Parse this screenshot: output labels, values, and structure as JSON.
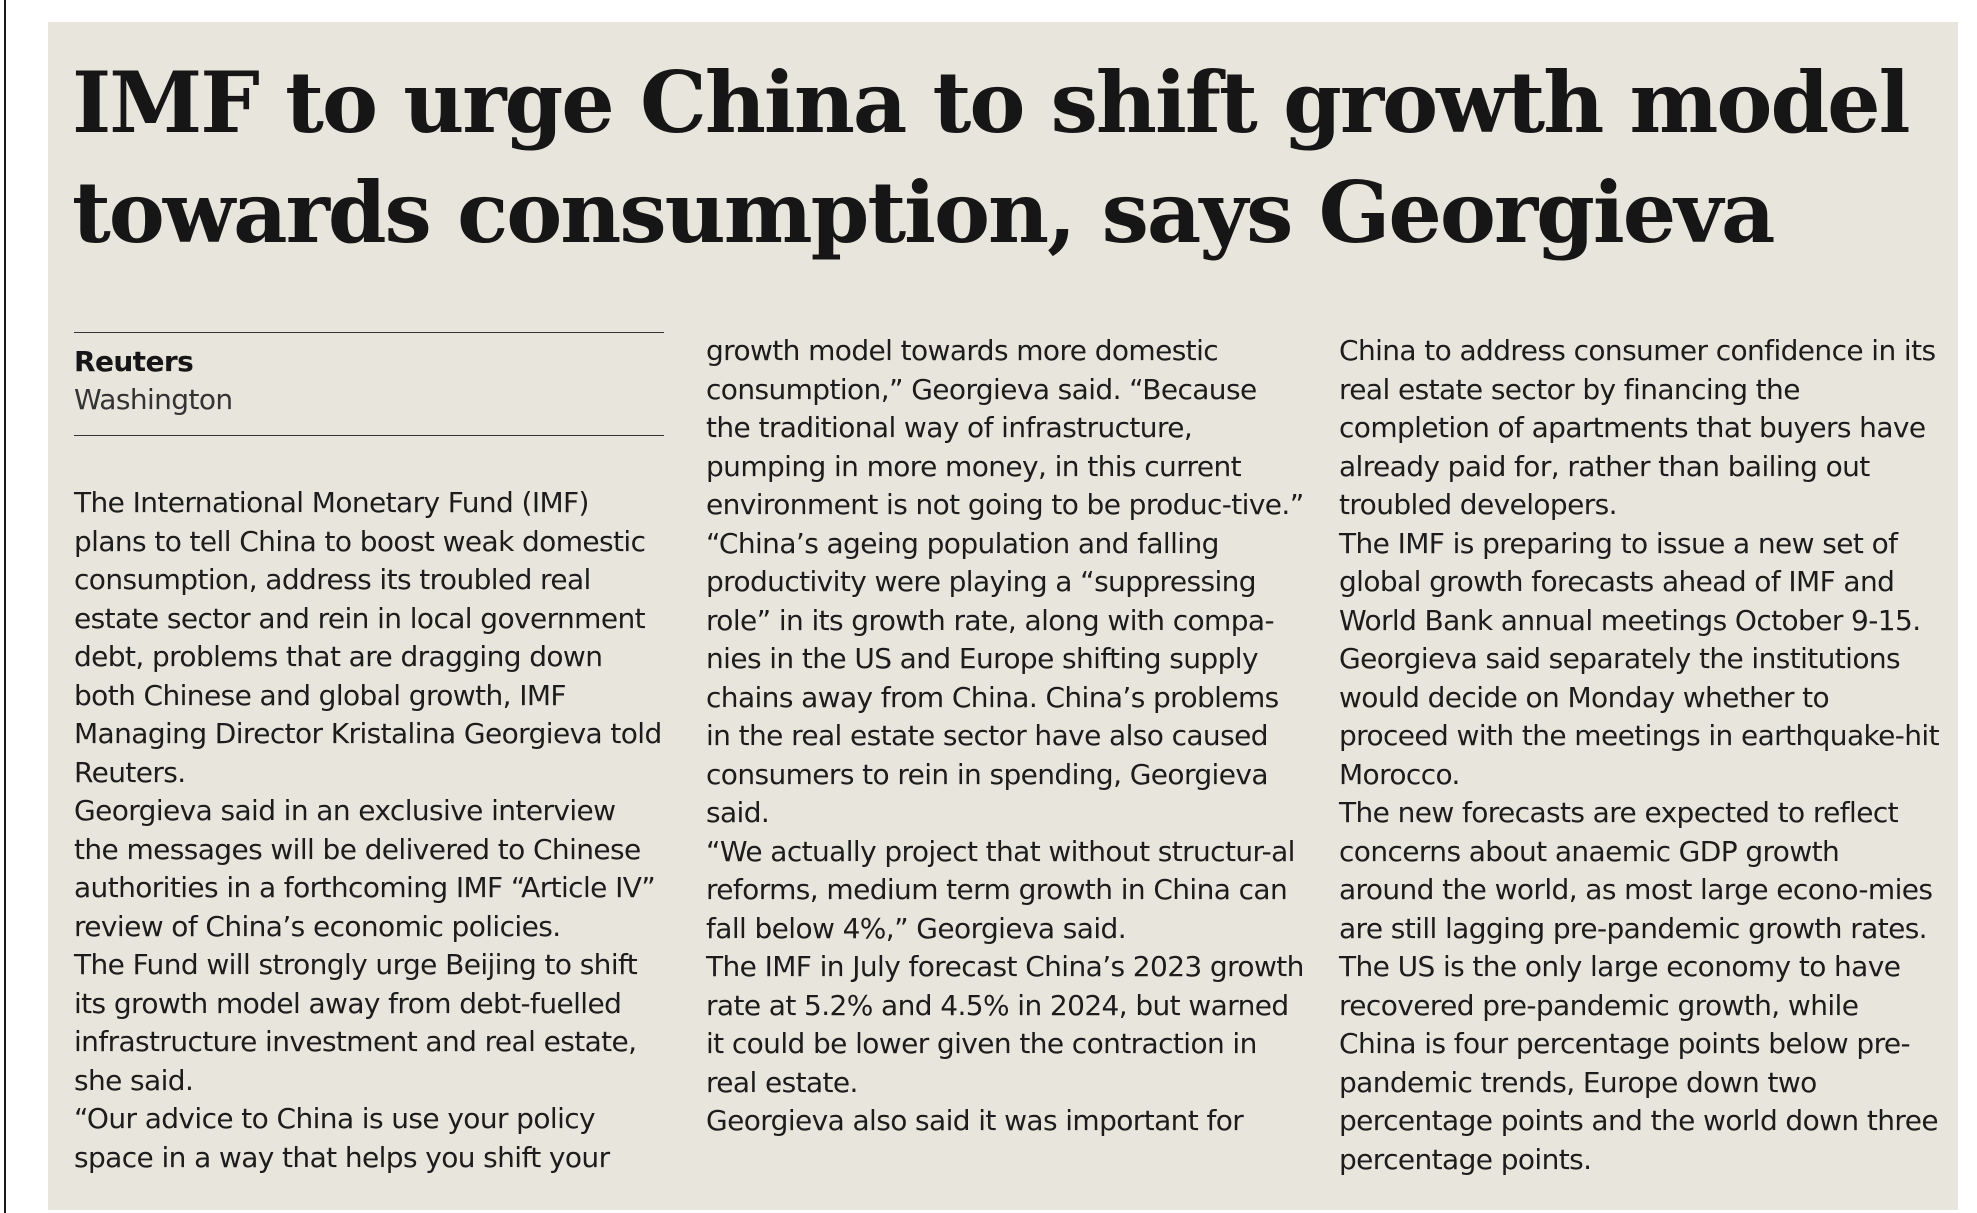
{
  "article": {
    "headline_line1": "IMF to urge China to shift growth model",
    "headline_line2": "towards consumption, says Georgieva",
    "byline": {
      "agency": "Reuters",
      "dateline": "Washington"
    },
    "columns": [
      [
        "The International Monetary Fund (IMF) plans to tell China to boost weak domestic consumption, address its troubled real estate sector and rein in local government debt, problems that are dragging down both Chinese and global growth, IMF Managing Director Kristalina Georgieva told Reuters.",
        "Georgieva said in an exclusive interview the messages will be delivered to Chinese authorities in a forthcoming IMF “Article IV” review of China’s economic policies.",
        "The Fund will strongly urge Beijing to shift its growth model away from debt-fuelled infrastructure investment and real estate, she said.",
        "“Our advice to China is use your policy space in a way that helps you shift your"
      ],
      [
        "growth model towards more domestic consumption,” Georgieva said. “Because the traditional way of infrastructure, pumping in more money, in this current environment is not going to be produc-tive.”",
        "“China’s ageing population and falling productivity were playing a “suppressing role” in its growth rate, along with compa-nies in the US and Europe shifting supply chains away from China. China’s problems in the real estate sector have also caused consumers to rein in spending, Georgieva said.",
        "“We actually project that without structur-al reforms, medium term growth in China can fall below 4%,” Georgieva said.",
        "The IMF in July forecast China’s 2023 growth rate at 5.2% and 4.5% in 2024, but warned it could be lower given the contraction in real estate.",
        "Georgieva also said it was important for"
      ],
      [
        "China to address consumer confidence in its real estate sector by financing the completion of apartments that buyers have already paid for, rather than bailing out troubled developers.",
        "The IMF is preparing to issue a new set of global growth forecasts ahead of IMF and World Bank annual meetings October 9-15.",
        "Georgieva said separately the institutions would decide on Monday whether to proceed with the meetings in earthquake-hit Morocco.",
        "The new forecasts are expected to reflect concerns about anaemic GDP growth around the world, as most large econo-mies are still lagging pre-pandemic growth rates. The US is the only large economy to have recovered pre-pandemic growth, while China is four percentage points below pre-pandemic trends, Europe down two percentage points and the world down three percentage points."
      ]
    ]
  }
}
